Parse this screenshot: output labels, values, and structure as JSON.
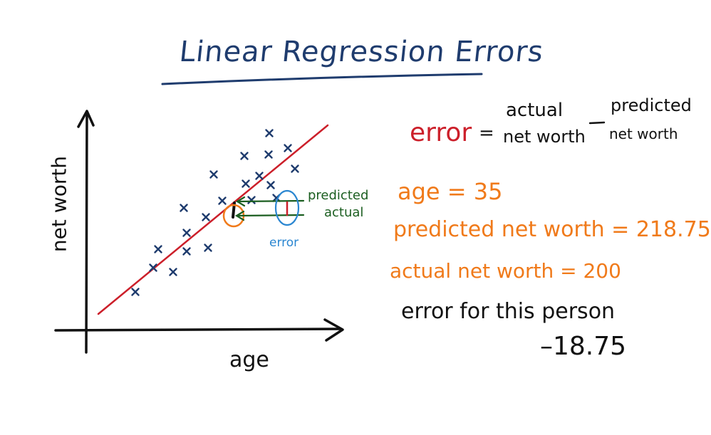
{
  "title": "Linear Regression Errors",
  "axes": {
    "y_label": "net worth",
    "x_label": "age"
  },
  "annotations": {
    "predicted": "predicted",
    "actual": "actual",
    "error": "error"
  },
  "formula": {
    "error_word": "error",
    "equals": "=",
    "actual": "actual",
    "net_worth_1": "net worth",
    "minus": "–",
    "predicted": "predicted",
    "net_worth_2": "net worth"
  },
  "example": {
    "age_line": "age = 35",
    "predicted_line": "predicted net worth = 218.75",
    "actual_line": "actual net worth = 200",
    "error_line": "error for this person",
    "error_value": "–18.75"
  },
  "colors": {
    "title": "#1f3c6e",
    "regression_line": "#cc1f2a",
    "points": "#1f3c6e",
    "arrows": "#1b5e20",
    "highlight_circle": "#f07a1a",
    "error_ellipse": "#2a86d1",
    "example_text": "#f07a1a"
  }
}
